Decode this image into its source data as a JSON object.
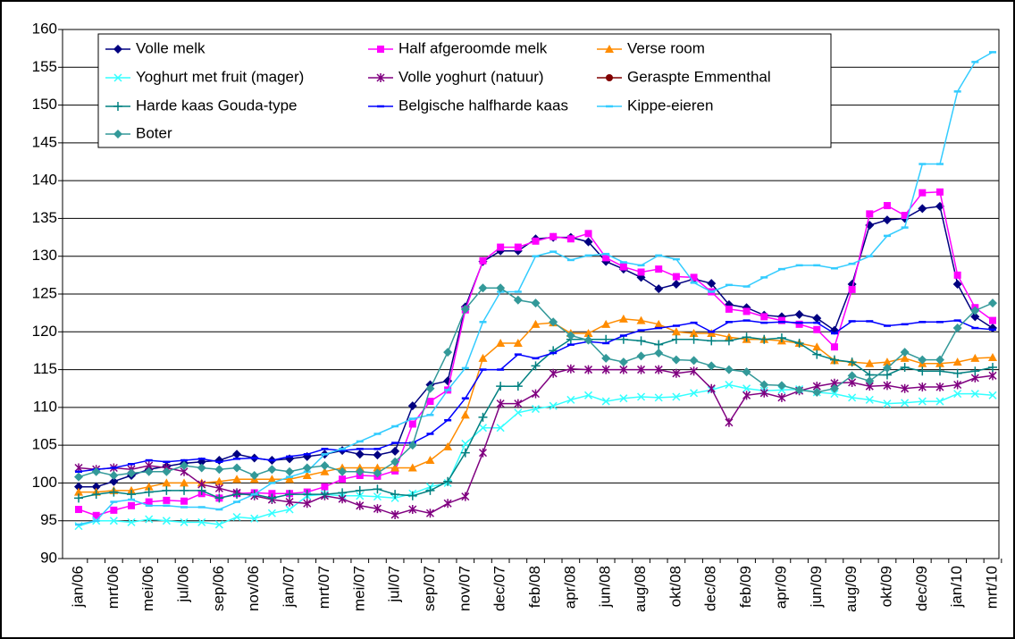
{
  "chart_data": {
    "type": "line",
    "categories": [
      "jan/06",
      null,
      "mrt/06",
      null,
      "mei/06",
      null,
      "jul/06",
      null,
      "sep/06",
      null,
      "nov/06",
      null,
      "jan/07",
      null,
      "mrt/07",
      null,
      "mei/07",
      null,
      "jul/07",
      null,
      "sep/07",
      null,
      "nov/07",
      null,
      "dec/07",
      null,
      "feb/08",
      null,
      "apr/08",
      null,
      "jun/08",
      null,
      "aug/08",
      null,
      "okt/08",
      null,
      "dec/08",
      null,
      "feb/09",
      null,
      "apr/09",
      null,
      "jun/09",
      null,
      "aug/09",
      null,
      "okt/09",
      null,
      "dec/09",
      null,
      "jan/10",
      null,
      "mrt/10"
    ],
    "ylim": [
      90,
      160
    ],
    "yticks": [
      90,
      95,
      100,
      105,
      110,
      115,
      120,
      125,
      130,
      135,
      140,
      145,
      150,
      155,
      160
    ],
    "grid": true,
    "legend": "upper left",
    "series": [
      {
        "name": "Volle melk",
        "color": "#000080",
        "marker": "diamond",
        "values": [
          99.5,
          99.5,
          100.2,
          101,
          101.8,
          102.2,
          102.6,
          102.8,
          103,
          103.8,
          103.3,
          103,
          103.2,
          103.5,
          103.8,
          104.3,
          103.8,
          103.7,
          104.2,
          110.2,
          113,
          113.5,
          123.3,
          129.3,
          130.7,
          130.7,
          132.3,
          132.5,
          132.5,
          131.9,
          129.3,
          128.3,
          127.2,
          125.7,
          126.3,
          127,
          126.4,
          123.6,
          123.2,
          122.2,
          122,
          122.3,
          121.8,
          120.2,
          126.3,
          134.1,
          134.8,
          135,
          136.3,
          136.6,
          126.3,
          122,
          120.5
        ]
      },
      {
        "name": "Half afgeroomde melk",
        "color": "#ff00ff",
        "marker": "square",
        "values": [
          96.5,
          95.7,
          96.4,
          97,
          97.5,
          97.7,
          97.6,
          98.6,
          98,
          98.6,
          98.7,
          98.6,
          98.6,
          98.8,
          99.5,
          100.5,
          101,
          100.9,
          101.6,
          107.8,
          110.8,
          112.3,
          122.9,
          129.4,
          131.2,
          131.2,
          132,
          132.6,
          132.3,
          133,
          129.8,
          128.6,
          127.9,
          128.3,
          127.3,
          127.2,
          125.3,
          123,
          122.7,
          122,
          121.5,
          121,
          120.3,
          118,
          125.6,
          135.6,
          136.7,
          135.4,
          138.4,
          138.5,
          127.5,
          123.2,
          121.5
        ]
      },
      {
        "name": "Verse room",
        "color": "#ff8c00",
        "marker": "triangle",
        "values": [
          98.8,
          98.8,
          99,
          99,
          99.5,
          100,
          100,
          100,
          100.2,
          100.5,
          100.5,
          100.5,
          100.5,
          101,
          101.5,
          102,
          102,
          102,
          102,
          102,
          103,
          104.8,
          109,
          116.5,
          118.5,
          118.5,
          121,
          121.2,
          119.8,
          119.8,
          121,
          121.7,
          121.5,
          121,
          120,
          119.8,
          119.8,
          119.3,
          119,
          119,
          118.8,
          118.5,
          118,
          116.2,
          116,
          115.8,
          116,
          116.5,
          115.8,
          115.8,
          116,
          116.5,
          116.6
        ]
      },
      {
        "name": "Yoghurt met fruit (mager)",
        "color": "#33ffff",
        "marker": "x",
        "values": [
          94.3,
          95,
          95,
          94.8,
          95.2,
          95,
          94.8,
          94.8,
          94.5,
          95.5,
          95.3,
          96,
          96.5,
          98.3,
          98.5,
          98.3,
          98.3,
          98.2,
          98,
          98.6,
          99.5,
          100,
          105.2,
          107.3,
          107.3,
          109.3,
          109.8,
          110.2,
          111,
          111.6,
          110.8,
          111.2,
          111.4,
          111.3,
          111.4,
          111.9,
          112.3,
          113,
          112.5,
          112.2,
          112.3,
          112.4,
          112,
          111.8,
          111.3,
          111,
          110.5,
          110.6,
          110.8,
          110.8,
          111.8,
          111.8,
          111.6
        ]
      },
      {
        "name": "Volle yoghurt (natuur)",
        "color": "#800080",
        "marker": "star",
        "values": [
          102,
          101.8,
          102,
          101.8,
          102.3,
          102,
          101.5,
          99.8,
          99.3,
          98.7,
          98.3,
          97.8,
          97.5,
          97.3,
          98.3,
          97.9,
          97,
          96.6,
          95.8,
          96.5,
          96,
          97.3,
          98.2,
          104,
          110.5,
          110.5,
          111.8,
          114.5,
          115.1,
          115,
          115,
          115,
          115,
          115,
          114.5,
          114.8,
          112.5,
          108,
          111.6,
          111.9,
          111.3,
          112.2,
          112.8,
          113.2,
          113.3,
          112.8,
          112.9,
          112.5,
          112.7,
          112.7,
          113,
          113.9,
          114.2
        ]
      },
      {
        "name": "Geraspte Emmenthal",
        "color": "#800000",
        "marker": "circle",
        "values": [
          null,
          null,
          null,
          null,
          null,
          null,
          null,
          null,
          null,
          null,
          null,
          null,
          null,
          null,
          null,
          null,
          null,
          null,
          null,
          null,
          null,
          null,
          null,
          null,
          null,
          null,
          null,
          null,
          null,
          null,
          null,
          null,
          null,
          null,
          null,
          null,
          null,
          null,
          null,
          null,
          null,
          null,
          null,
          null,
          null,
          null,
          null,
          null,
          null,
          null,
          null,
          null,
          null
        ]
      },
      {
        "name": "Harde kaas Gouda-type",
        "color": "#008080",
        "marker": "plus",
        "values": [
          98,
          98.5,
          98.8,
          98.5,
          98.8,
          99,
          99,
          99,
          98,
          98.5,
          98.5,
          98,
          98.5,
          98.5,
          98.5,
          98.7,
          99,
          99.2,
          98.5,
          98.3,
          99,
          100.2,
          104,
          108.7,
          112.8,
          112.8,
          115.5,
          117.5,
          119,
          119,
          119,
          119,
          118.8,
          118.3,
          119,
          119,
          118.8,
          118.8,
          119.3,
          119,
          119.2,
          118.5,
          117,
          116.3,
          116,
          114.3,
          114.3,
          115.3,
          114.8,
          114.8,
          114.5,
          114.8,
          115.3
        ]
      },
      {
        "name": "Belgische halfharde kaas",
        "color": "#0000ff",
        "marker": "dash",
        "values": [
          101.5,
          101.8,
          102,
          102.5,
          103,
          102.8,
          103,
          103.2,
          102.8,
          103.2,
          103.3,
          103,
          103.5,
          103.8,
          104.5,
          104.3,
          104.5,
          104.5,
          105.3,
          105.3,
          106.5,
          108.3,
          111.2,
          115,
          115,
          117,
          116.5,
          117.2,
          118.3,
          118.7,
          118.5,
          119.5,
          120.2,
          120.5,
          120.8,
          121.2,
          120,
          121.3,
          121.5,
          121.2,
          121.3,
          121.2,
          121.2,
          119.8,
          121.4,
          121.4,
          120.8,
          121,
          121.3,
          121.3,
          121.5,
          120.5,
          120.3
        ]
      },
      {
        "name": "Kippe-eieren",
        "color": "#33ccff",
        "marker": "dash",
        "values": [
          94.5,
          95,
          97.5,
          97.8,
          97,
          97,
          96.8,
          96.8,
          96.5,
          97.5,
          98.5,
          100,
          100.8,
          101.5,
          103.8,
          104.5,
          105.5,
          106.5,
          107.5,
          108.5,
          109,
          112.3,
          115.2,
          121.3,
          125.3,
          125.3,
          130,
          130.6,
          129.5,
          130.1,
          130.3,
          129.2,
          128.8,
          130.1,
          129.6,
          126.5,
          125.3,
          126.2,
          126,
          127.2,
          128.3,
          128.8,
          128.8,
          128.4,
          129,
          130,
          132.7,
          133.8,
          142.2,
          142.2,
          151.8,
          155.7,
          157
        ]
      },
      {
        "name": "Boter",
        "color": "#339999",
        "marker": "diamond",
        "values": [
          100.8,
          101.5,
          101,
          101.3,
          101.5,
          101.5,
          102.3,
          102,
          101.8,
          102,
          101,
          101.8,
          101.5,
          102,
          102.3,
          101.5,
          101.5,
          101.3,
          102.8,
          105,
          112.5,
          117.3,
          123,
          125.8,
          125.8,
          124.2,
          123.8,
          121.3,
          119.5,
          118.9,
          116.5,
          116,
          116.8,
          117.2,
          116.3,
          116.2,
          115.5,
          115,
          114.7,
          113,
          112.9,
          112.3,
          112,
          112.5,
          114.2,
          113.5,
          115.2,
          117.3,
          116.3,
          116.3,
          120.5,
          122.8,
          123.8
        ]
      }
    ]
  }
}
